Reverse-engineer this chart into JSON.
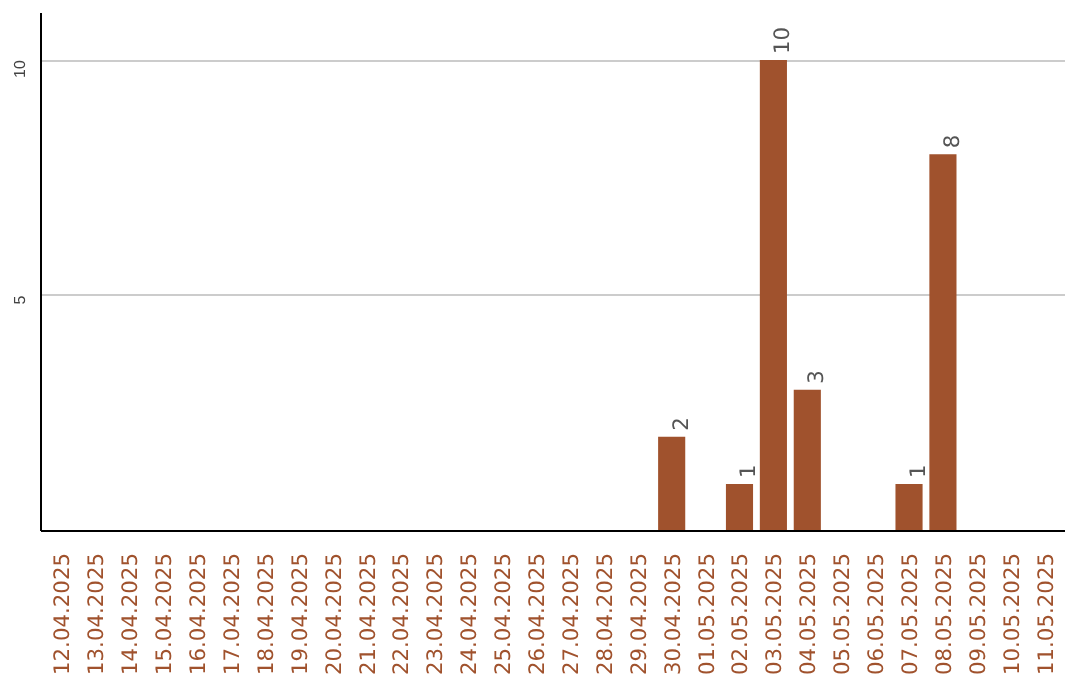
{
  "chart_data": {
    "type": "bar",
    "categories": [
      "12.04.2025",
      "13.04.2025",
      "14.04.2025",
      "15.04.2025",
      "16.04.2025",
      "17.04.2025",
      "18.04.2025",
      "19.04.2025",
      "20.04.2025",
      "21.04.2025",
      "22.04.2025",
      "23.04.2025",
      "24.04.2025",
      "25.04.2025",
      "26.04.2025",
      "27.04.2025",
      "28.04.2025",
      "29.04.2025",
      "30.04.2025",
      "01.05.2025",
      "02.05.2025",
      "03.05.2025",
      "04.05.2025",
      "05.05.2025",
      "06.05.2025",
      "07.05.2025",
      "08.05.2025",
      "09.05.2025",
      "10.05.2025",
      "11.05.2025"
    ],
    "values": [
      0,
      0,
      0,
      0,
      0,
      0,
      0,
      0,
      0,
      0,
      0,
      0,
      0,
      0,
      0,
      0,
      0,
      0,
      2,
      0,
      1,
      10,
      3,
      0,
      0,
      1,
      8,
      0,
      0,
      0
    ],
    "value_labels": [
      null,
      null,
      null,
      null,
      null,
      null,
      null,
      null,
      null,
      null,
      null,
      null,
      null,
      null,
      null,
      null,
      null,
      null,
      "2",
      null,
      "1",
      "10",
      "3",
      null,
      null,
      "1",
      "8",
      null,
      null,
      null
    ],
    "color": "#a0522d",
    "ylim": [
      0,
      11
    ],
    "yticks": [
      5,
      10
    ],
    "grid": "y"
  }
}
